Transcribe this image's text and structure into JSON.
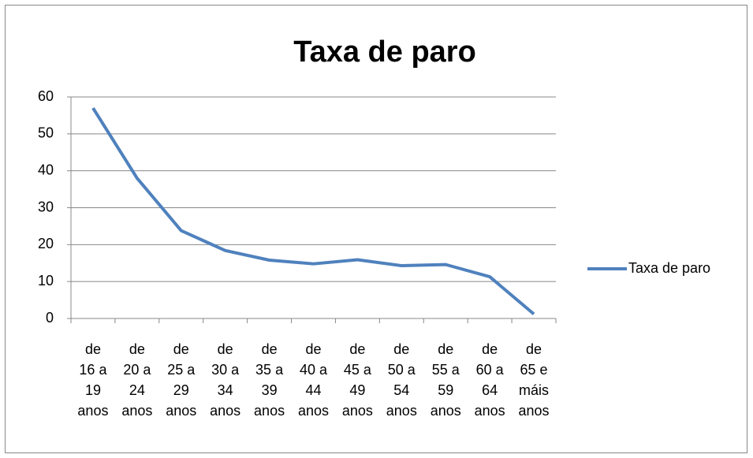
{
  "chart_data": {
    "type": "line",
    "title": "Taxa de paro",
    "categories": [
      "de 16 a 19 anos",
      "de 20 a 24 anos",
      "de 25 a 29 anos",
      "de 30 a 34 anos",
      "de 35 a 39 anos",
      "de 40 a 44 anos",
      "de 45 a 49 anos",
      "de 50 a 54 anos",
      "de 55 a 59 anos",
      "de 60 a 64 anos",
      "de 65 e máis anos"
    ],
    "series": [
      {
        "name": "Taxa de paro",
        "color": "#4f81bd",
        "values": [
          57,
          38,
          23.8,
          18.4,
          15.8,
          14.8,
          15.9,
          14.3,
          14.6,
          11.3,
          1.2
        ]
      }
    ],
    "ylim": [
      0,
      60
    ],
    "yticks": [
      0,
      10,
      20,
      30,
      40,
      50,
      60
    ],
    "grid": true,
    "legend": "right"
  }
}
